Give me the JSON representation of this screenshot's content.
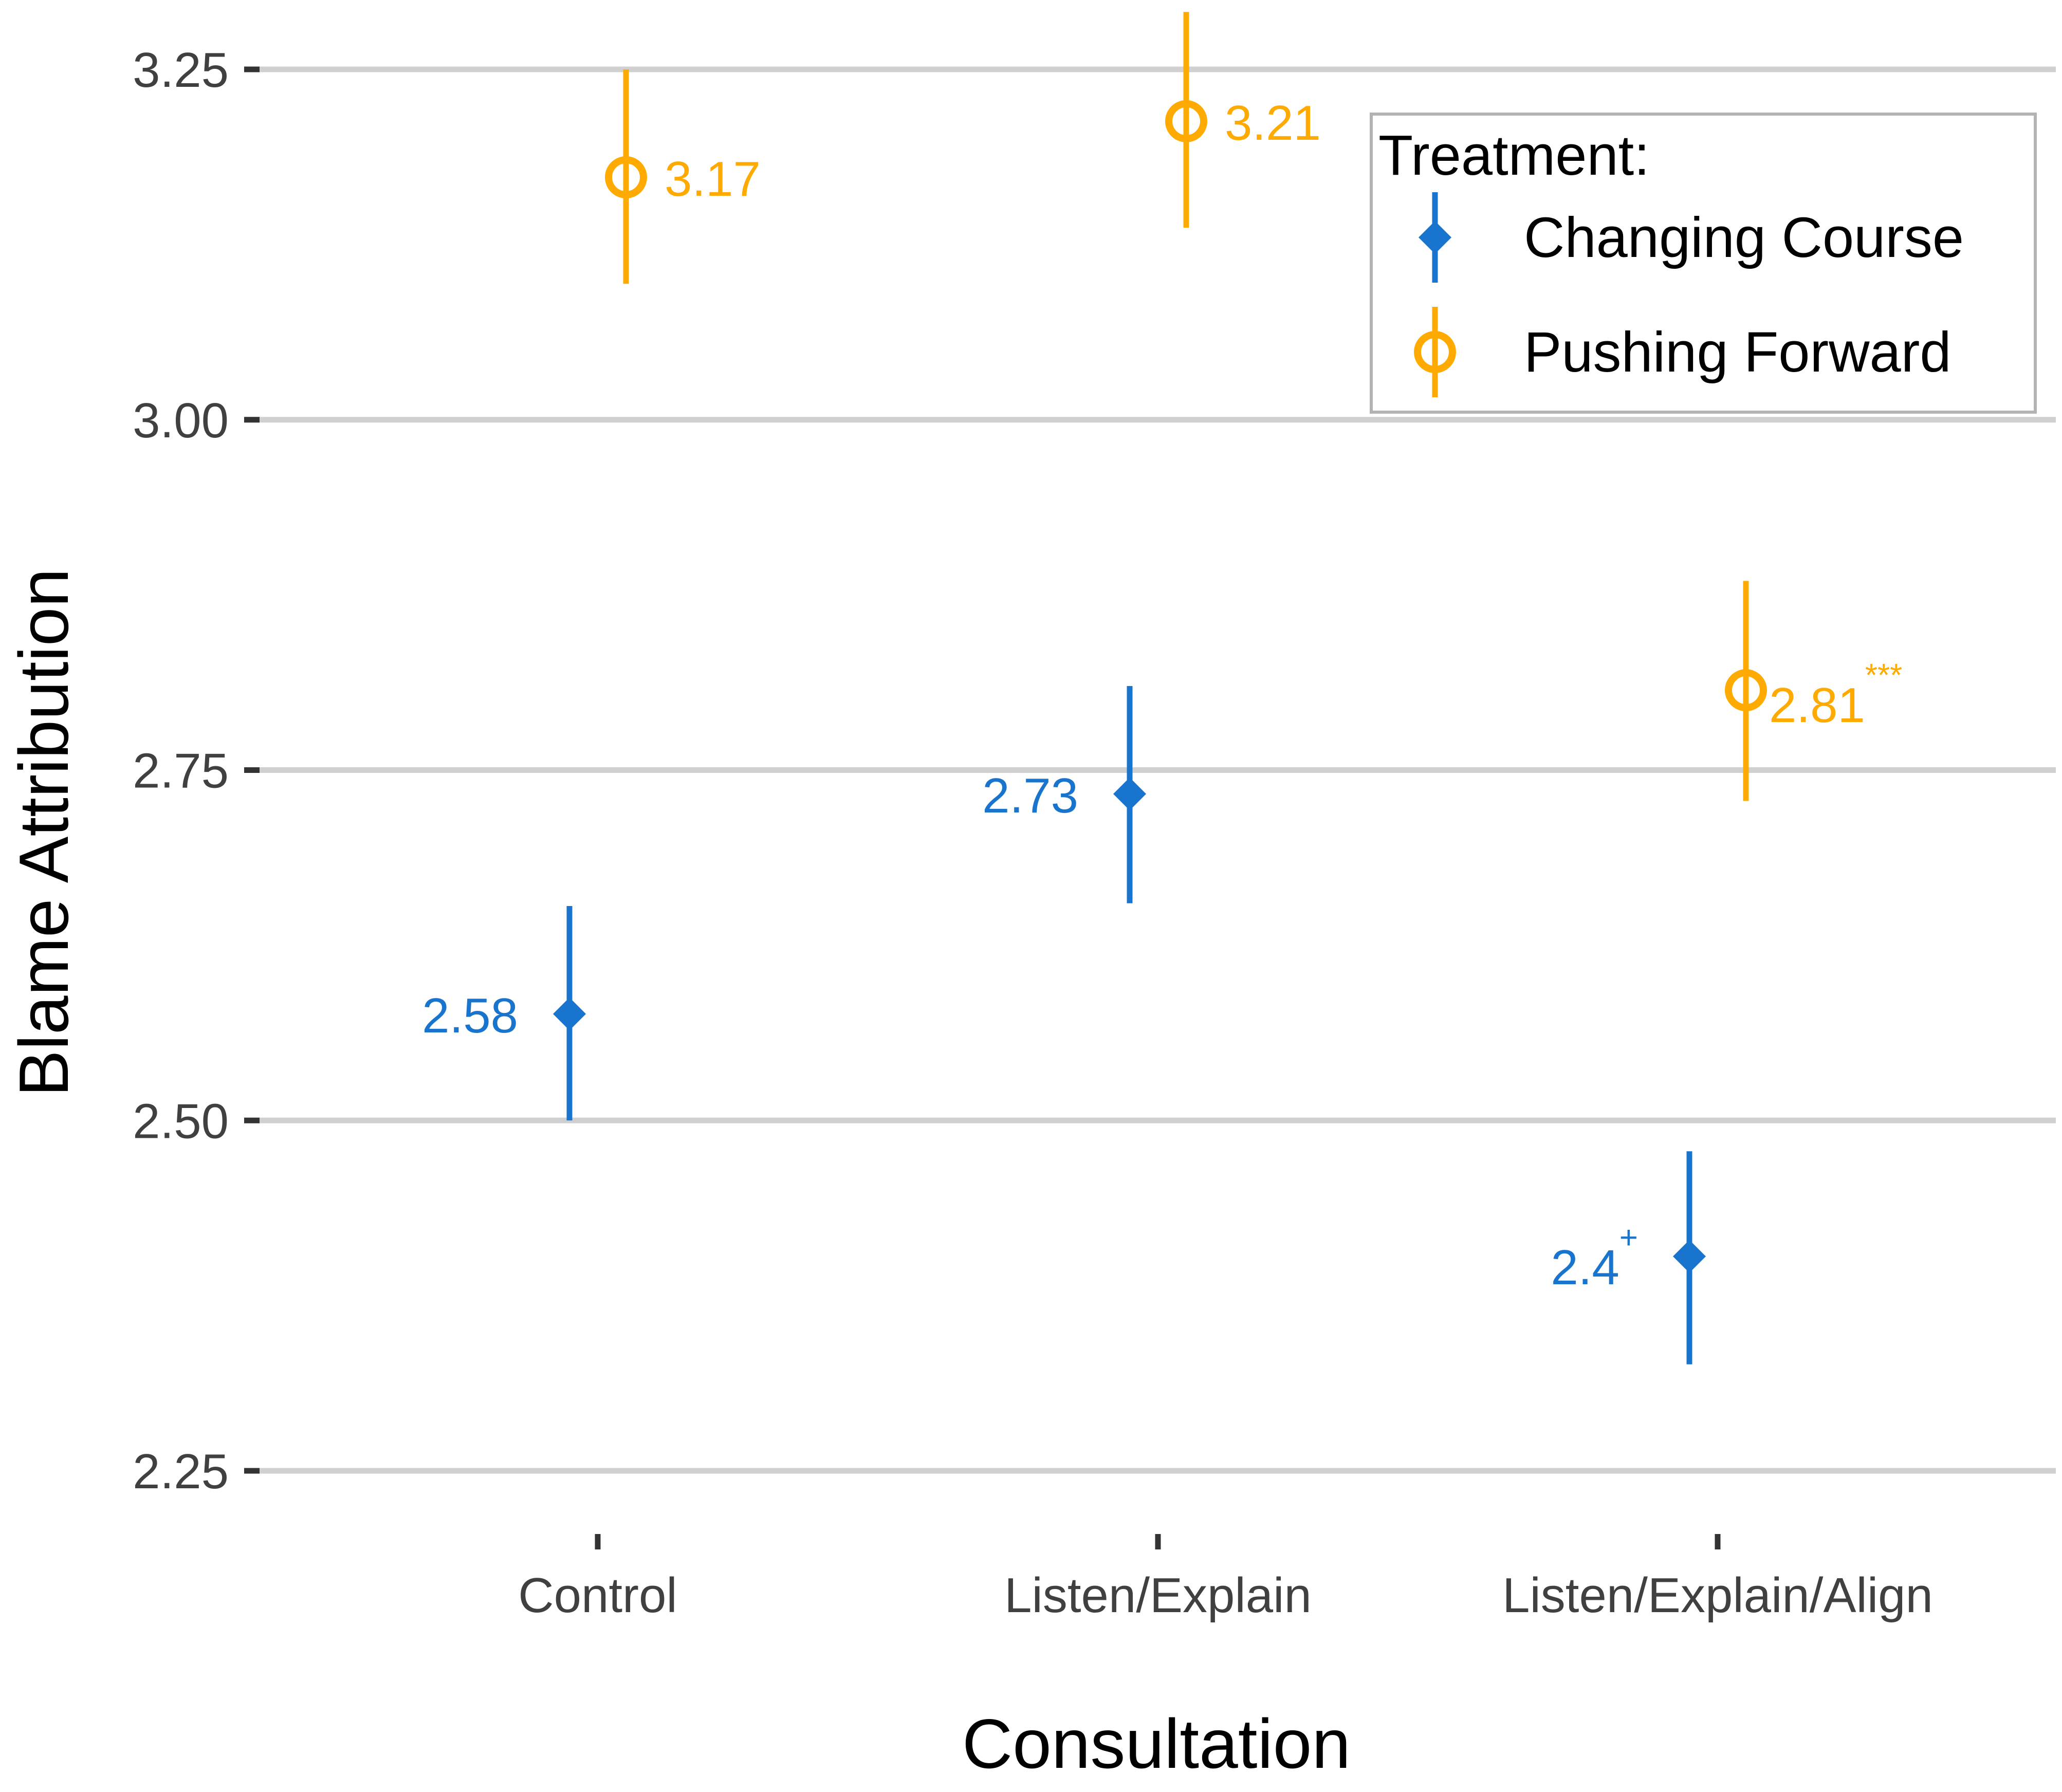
{
  "chart_data": {
    "type": "scatter",
    "xlabel": "Consultation",
    "ylabel": "Blame Attribution",
    "categories": [
      "Control",
      "Listen/Explain",
      "Listen/Explain/Align"
    ],
    "ylim": [
      2.2,
      3.3
    ],
    "yticks": [
      2.25,
      2.5,
      2.75,
      3.0,
      3.25
    ],
    "ytick_labels": [
      "2.25",
      "2.50",
      "2.75",
      "3.00",
      "3.25"
    ],
    "grid": "horizontal",
    "legend": {
      "title": "Treatment:",
      "position": "top-right"
    },
    "series": [
      {
        "name": "Changing Course",
        "color": "#1874CD",
        "marker": "diamond-filled",
        "values": [
          2.576,
          2.733,
          2.403
        ],
        "ci_low": [
          2.5,
          2.655,
          2.326
        ],
        "ci_high": [
          2.653,
          2.81,
          2.478
        ],
        "labels": [
          "2.58",
          "2.73",
          "2.4"
        ],
        "marks": [
          "",
          "",
          "+"
        ]
      },
      {
        "name": "Pushing Forward",
        "color": "#FFAA00",
        "marker": "circle-open",
        "values": [
          3.173,
          3.213,
          2.807
        ],
        "ci_low": [
          3.097,
          3.137,
          2.728
        ],
        "ci_high": [
          3.25,
          3.291,
          2.885
        ],
        "labels": [
          "3.17",
          "3.21",
          "2.81"
        ],
        "marks": [
          "",
          "",
          "***"
        ]
      }
    ]
  }
}
